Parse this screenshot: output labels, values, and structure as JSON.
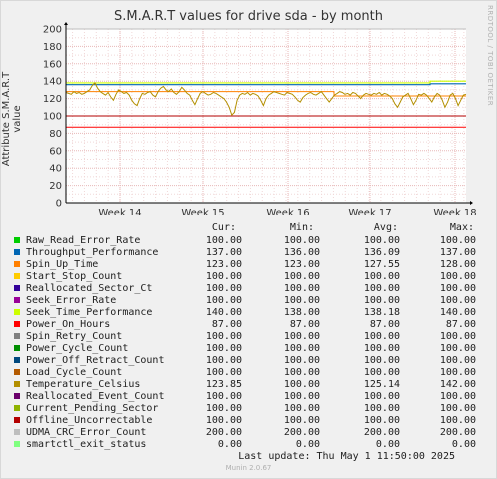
{
  "title": "S.M.A.R.T values for drive sda - by month",
  "watermark": "RRDTOOL / TOBI OETIKER",
  "footer": "Munin 2.0.67",
  "last_update": "Last update: Thu May  1 11:50:00 2025",
  "columns": [
    "Cur:",
    "Min:",
    "Avg:",
    "Max:"
  ],
  "chart_data": {
    "type": "line",
    "title": "S.M.A.R.T values for drive sda - by month",
    "ylabel": "Attribute S.M.A.R.T value",
    "xlabel": "",
    "ylim": [
      0,
      200
    ],
    "yticks": [
      0,
      20,
      40,
      60,
      80,
      100,
      120,
      140,
      160,
      180,
      200
    ],
    "xticks": [
      "Week 14",
      "Week 15",
      "Week 16",
      "Week 17",
      "Week 18"
    ],
    "grid": true,
    "temperature_points": [
      127,
      126,
      125,
      128,
      126,
      127,
      125,
      126,
      128,
      130,
      135,
      138,
      132,
      128,
      126,
      124,
      127,
      122,
      118,
      125,
      130,
      128,
      126,
      127,
      124,
      118,
      114,
      112,
      120,
      126,
      125,
      127,
      128,
      124,
      122,
      128,
      132,
      134,
      130,
      128,
      131,
      127,
      125,
      128,
      133,
      130,
      126,
      124,
      118,
      113,
      120,
      126,
      128,
      126,
      124,
      125,
      127,
      126,
      124,
      122,
      120,
      116,
      110,
      101,
      104,
      118,
      124,
      126,
      125,
      127,
      124,
      126,
      125,
      123,
      118,
      112,
      120,
      124,
      126,
      128,
      127,
      126,
      125,
      124,
      127,
      126,
      125,
      122,
      118,
      116,
      121,
      124,
      126,
      127,
      125,
      124,
      126,
      128,
      124,
      120,
      116,
      120,
      124,
      126,
      128,
      127,
      125,
      126,
      124,
      127,
      126,
      123,
      120,
      124,
      126,
      125,
      124,
      126,
      125,
      127,
      124,
      126,
      125,
      123,
      120,
      114,
      110,
      116,
      122,
      124,
      126,
      120,
      113,
      118,
      125,
      124,
      126,
      124,
      120,
      116,
      122,
      126,
      124,
      118,
      110,
      116,
      124,
      126,
      120,
      112,
      118,
      124,
      125
    ],
    "series": [
      {
        "name": "Raw_Read_Error_Rate",
        "color": "#00cc00",
        "cur": "100.00",
        "min": "100.00",
        "avg": "100.00",
        "max": "100.00"
      },
      {
        "name": "Throughput_Performance",
        "color": "#0066b3",
        "cur": "137.00",
        "min": "136.00",
        "avg": "136.09",
        "max": "137.00"
      },
      {
        "name": "Spin_Up_Time",
        "color": "#ff8000",
        "cur": "123.00",
        "min": "123.00",
        "avg": "127.55",
        "max": "128.00"
      },
      {
        "name": "Start_Stop_Count",
        "color": "#ffcc00",
        "cur": "100.00",
        "min": "100.00",
        "avg": "100.00",
        "max": "100.00"
      },
      {
        "name": "Reallocated_Sector_Ct",
        "color": "#330099",
        "cur": "100.00",
        "min": "100.00",
        "avg": "100.00",
        "max": "100.00"
      },
      {
        "name": "Seek_Error_Rate",
        "color": "#990099",
        "cur": "100.00",
        "min": "100.00",
        "avg": "100.00",
        "max": "100.00"
      },
      {
        "name": "Seek_Time_Performance",
        "color": "#ccff00",
        "cur": "140.00",
        "min": "138.00",
        "avg": "138.18",
        "max": "140.00"
      },
      {
        "name": "Power_On_Hours",
        "color": "#ff0000",
        "cur": "87.00",
        "min": "87.00",
        "avg": "87.00",
        "max": "87.00"
      },
      {
        "name": "Spin_Retry_Count",
        "color": "#808080",
        "cur": "100.00",
        "min": "100.00",
        "avg": "100.00",
        "max": "100.00"
      },
      {
        "name": "Power_Cycle_Count",
        "color": "#008f00",
        "cur": "100.00",
        "min": "100.00",
        "avg": "100.00",
        "max": "100.00"
      },
      {
        "name": "Power_Off_Retract_Count",
        "color": "#00487d",
        "cur": "100.00",
        "min": "100.00",
        "avg": "100.00",
        "max": "100.00"
      },
      {
        "name": "Load_Cycle_Count",
        "color": "#b35a00",
        "cur": "100.00",
        "min": "100.00",
        "avg": "100.00",
        "max": "100.00"
      },
      {
        "name": "Temperature_Celsius",
        "color": "#b38f00",
        "cur": "123.85",
        "min": "100.00",
        "avg": "125.14",
        "max": "142.00"
      },
      {
        "name": "Reallocated_Event_Count",
        "color": "#6b006b",
        "cur": "100.00",
        "min": "100.00",
        "avg": "100.00",
        "max": "100.00"
      },
      {
        "name": "Current_Pending_Sector",
        "color": "#8fb300",
        "cur": "100.00",
        "min": "100.00",
        "avg": "100.00",
        "max": "100.00"
      },
      {
        "name": "Offline_Uncorrectable",
        "color": "#b30000",
        "cur": "100.00",
        "min": "100.00",
        "avg": "100.00",
        "max": "100.00"
      },
      {
        "name": "UDMA_CRC_Error_Count",
        "color": "#bebebe",
        "cur": "200.00",
        "min": "200.00",
        "avg": "200.00",
        "max": "200.00"
      },
      {
        "name": "smartctl_exit_status",
        "color": "#80ff80",
        "cur": "0.00",
        "min": "0.00",
        "avg": "0.00",
        "max": "0.00"
      }
    ]
  }
}
